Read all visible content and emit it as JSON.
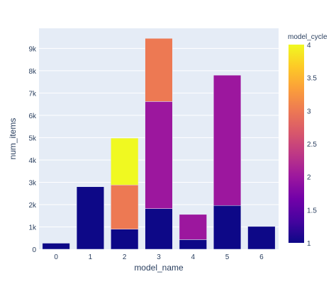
{
  "chart_data": {
    "type": "bar",
    "barmode": "stack",
    "xlabel": "model_name",
    "ylabel": "num_items",
    "categories": [
      "0",
      "1",
      "2",
      "3",
      "4",
      "5",
      "6"
    ],
    "ylim": [
      0,
      9900
    ],
    "y_ticks": [
      0,
      1000,
      2000,
      3000,
      4000,
      5000,
      6000,
      7000,
      8000,
      9000
    ],
    "y_tick_labels": [
      "0",
      "1k",
      "2k",
      "3k",
      "4k",
      "5k",
      "6k",
      "7k",
      "8k",
      "9k"
    ],
    "grid": true,
    "bars": [
      {
        "category": "0",
        "model_cycle": 1,
        "value": 270
      },
      {
        "category": "1",
        "model_cycle": 1,
        "value": 2800
      },
      {
        "category": "2",
        "model_cycle": 1,
        "value": 900
      },
      {
        "category": "2",
        "model_cycle": 3,
        "value": 1980
      },
      {
        "category": "2",
        "model_cycle": 4,
        "value": 2100
      },
      {
        "category": "3",
        "model_cycle": 1,
        "value": 1820
      },
      {
        "category": "3",
        "model_cycle": 2,
        "value": 4800
      },
      {
        "category": "3",
        "model_cycle": 3,
        "value": 2830
      },
      {
        "category": "4",
        "model_cycle": 1,
        "value": 430
      },
      {
        "category": "4",
        "model_cycle": 2,
        "value": 1130
      },
      {
        "category": "5",
        "model_cycle": 1,
        "value": 1960
      },
      {
        "category": "5",
        "model_cycle": 2,
        "value": 5840
      },
      {
        "category": "6",
        "model_cycle": 1,
        "value": 1020
      }
    ],
    "colorbar": {
      "title": "model_cycle",
      "range": [
        1,
        4
      ],
      "ticks": [
        1,
        1.5,
        2,
        2.5,
        3,
        3.5,
        4
      ],
      "tick_labels": [
        "1",
        "1.5",
        "2",
        "2.5",
        "3",
        "3.5",
        "4"
      ],
      "colorscale": [
        "#0d0887",
        "#46039f",
        "#7201a8",
        "#9c179e",
        "#bd3786",
        "#d8576b",
        "#ed7953",
        "#fb9f3a",
        "#fdca26",
        "#f0f921"
      ]
    },
    "colors": {
      "plot_bg": "#e5ecf6",
      "grid": "#ffffff",
      "tick_text": "#2a3f5f"
    }
  }
}
